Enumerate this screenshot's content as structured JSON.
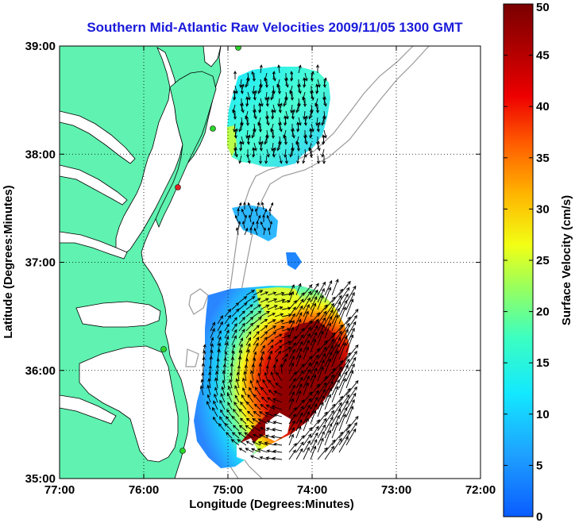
{
  "title": "Southern Mid-Atlantic Raw Velocities 2009/11/05 1300 GMT",
  "xlabel": "Longitude (Degrees:Minutes)",
  "ylabel": "Latitude (Degrees:Minutes)",
  "colorbar_label": "Surface Velocity (cm/s)",
  "map": {
    "xlim": [
      -77,
      -72
    ],
    "ylim": [
      35,
      39
    ],
    "xticks": [
      {
        "value": -77,
        "label": "77:00"
      },
      {
        "value": -76,
        "label": "76:00"
      },
      {
        "value": -75,
        "label": "75:00"
      },
      {
        "value": -74,
        "label": "74:00"
      },
      {
        "value": -73,
        "label": "73:00"
      },
      {
        "value": -72,
        "label": "72:00"
      }
    ],
    "yticks": [
      {
        "value": 39,
        "label": "39:00"
      },
      {
        "value": 38,
        "label": "38:00"
      },
      {
        "value": 37,
        "label": "37:00"
      },
      {
        "value": 36,
        "label": "36:00"
      },
      {
        "value": 35,
        "label": "35:00"
      }
    ],
    "grid": "dotted",
    "land_color": "#5ff2b0",
    "isobath_color": "#9a9a9a",
    "station_colors": {
      "active": "#2bd62b",
      "alert": "#e02020"
    }
  },
  "colorbar": {
    "min": 0,
    "max": 50,
    "ticks": [
      {
        "value": 50,
        "label": "50"
      },
      {
        "value": 45,
        "label": "45"
      },
      {
        "value": 40,
        "label": "40"
      },
      {
        "value": 35,
        "label": "35"
      },
      {
        "value": 30,
        "label": "30"
      },
      {
        "value": 25,
        "label": "25"
      },
      {
        "value": 20,
        "label": "20"
      },
      {
        "value": 15,
        "label": "15"
      },
      {
        "value": 10,
        "label": "10"
      },
      {
        "value": 5,
        "label": "5"
      },
      {
        "value": 0,
        "label": "0"
      }
    ],
    "colormap": "jet"
  }
}
